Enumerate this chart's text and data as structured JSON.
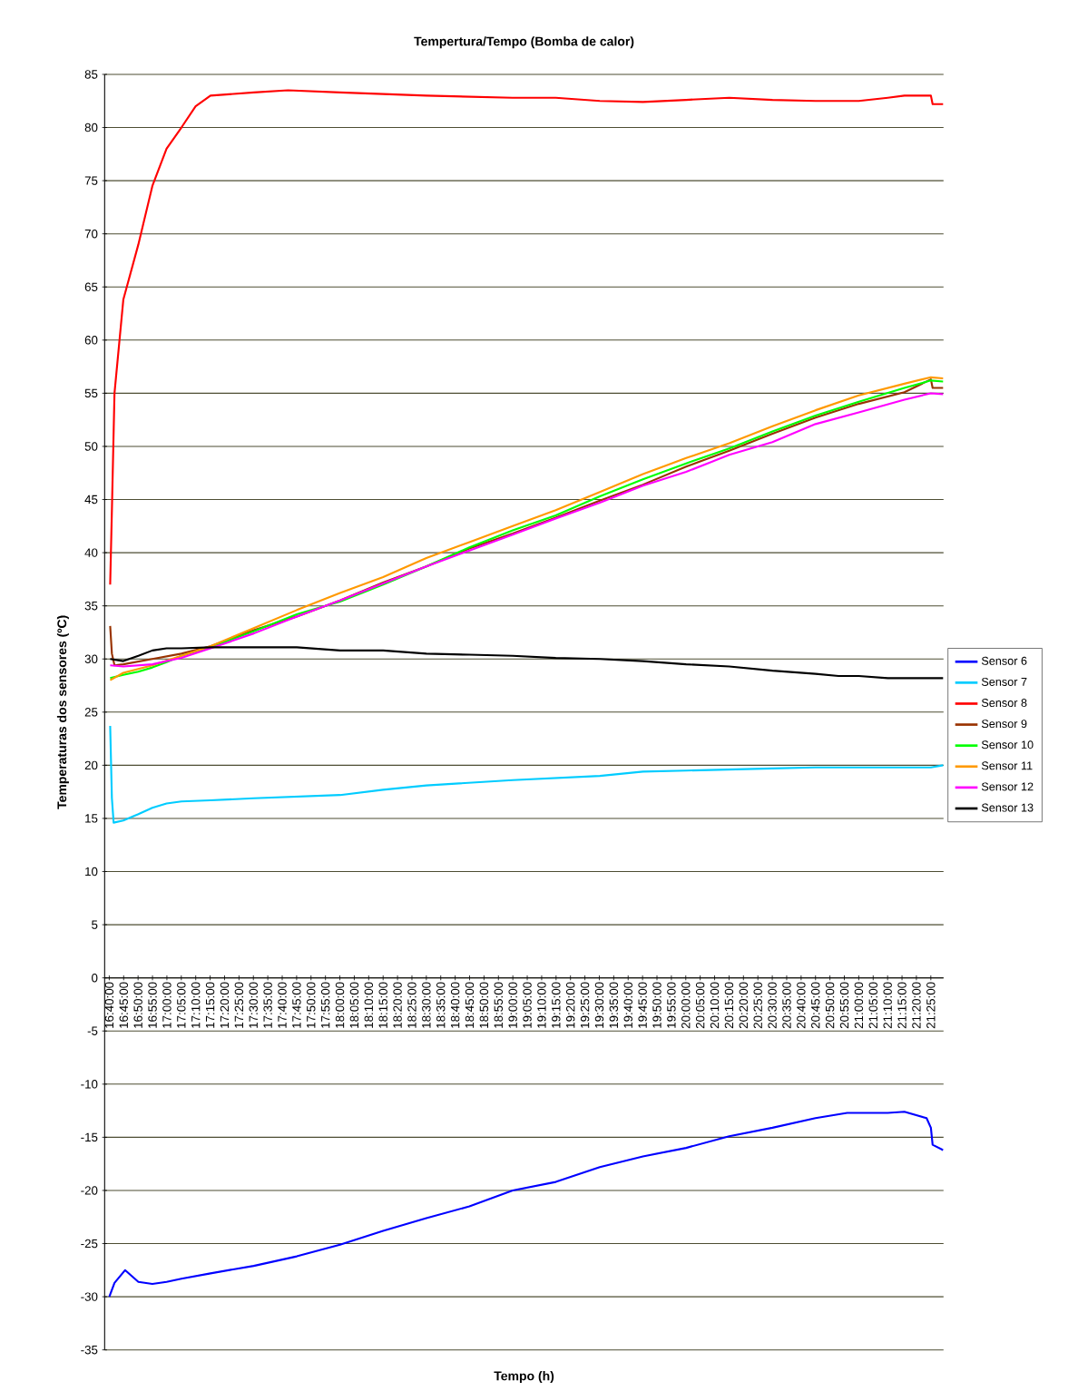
{
  "chart_data": {
    "type": "line",
    "title": "Tempertura/Tempo (Bomba de calor)",
    "xlabel": "Tempo (h)",
    "ylabel": "Temperaturas dos sensores (ºC)",
    "xlim": [
      16.64,
      21.49
    ],
    "ylim": [
      -35,
      85
    ],
    "yticks": [
      -35,
      -30,
      -25,
      -20,
      -15,
      -10,
      -5,
      0,
      5,
      10,
      15,
      20,
      25,
      30,
      35,
      40,
      45,
      50,
      55,
      60,
      65,
      70,
      75,
      80,
      85
    ],
    "xticks": [
      {
        "value": 16.6667,
        "label": "16:40:00"
      },
      {
        "value": 16.75,
        "label": "16:45:00"
      },
      {
        "value": 16.8333,
        "label": "16:50:00"
      },
      {
        "value": 16.9167,
        "label": "16:55:00"
      },
      {
        "value": 17,
        "label": "17:00:00"
      },
      {
        "value": 17.0833,
        "label": "17:05:00"
      },
      {
        "value": 17.1667,
        "label": "17:10:00"
      },
      {
        "value": 17.25,
        "label": "17:15:00"
      },
      {
        "value": 17.3333,
        "label": "17:20:00"
      },
      {
        "value": 17.4167,
        "label": "17:25:00"
      },
      {
        "value": 17.5,
        "label": "17:30:00"
      },
      {
        "value": 17.5833,
        "label": "17:35:00"
      },
      {
        "value": 17.6667,
        "label": "17:40:00"
      },
      {
        "value": 17.75,
        "label": "17:45:00"
      },
      {
        "value": 17.8333,
        "label": "17:50:00"
      },
      {
        "value": 17.9167,
        "label": "17:55:00"
      },
      {
        "value": 18,
        "label": "18:00:00"
      },
      {
        "value": 18.0833,
        "label": "18:05:00"
      },
      {
        "value": 18.1667,
        "label": "18:10:00"
      },
      {
        "value": 18.25,
        "label": "18:15:00"
      },
      {
        "value": 18.3333,
        "label": "18:20:00"
      },
      {
        "value": 18.4167,
        "label": "18:25:00"
      },
      {
        "value": 18.5,
        "label": "18:30:00"
      },
      {
        "value": 18.5833,
        "label": "18:35:00"
      },
      {
        "value": 18.6667,
        "label": "18:40:00"
      },
      {
        "value": 18.75,
        "label": "18:45:00"
      },
      {
        "value": 18.8333,
        "label": "18:50:00"
      },
      {
        "value": 18.9167,
        "label": "18:55:00"
      },
      {
        "value": 19,
        "label": "19:00:00"
      },
      {
        "value": 19.0833,
        "label": "19:05:00"
      },
      {
        "value": 19.1667,
        "label": "19:10:00"
      },
      {
        "value": 19.25,
        "label": "19:15:00"
      },
      {
        "value": 19.3333,
        "label": "19:20:00"
      },
      {
        "value": 19.4167,
        "label": "19:25:00"
      },
      {
        "value": 19.5,
        "label": "19:30:00"
      },
      {
        "value": 19.5833,
        "label": "19:35:00"
      },
      {
        "value": 19.6667,
        "label": "19:40:00"
      },
      {
        "value": 19.75,
        "label": "19:45:00"
      },
      {
        "value": 19.8333,
        "label": "19:50:00"
      },
      {
        "value": 19.9167,
        "label": "19:55:00"
      },
      {
        "value": 20,
        "label": "20:00:00"
      },
      {
        "value": 20.0833,
        "label": "20:05:00"
      },
      {
        "value": 20.1667,
        "label": "20:10:00"
      },
      {
        "value": 20.25,
        "label": "20:15:00"
      },
      {
        "value": 20.3333,
        "label": "20:20:00"
      },
      {
        "value": 20.4167,
        "label": "20:25:00"
      },
      {
        "value": 20.5,
        "label": "20:30:00"
      },
      {
        "value": 20.5833,
        "label": "20:35:00"
      },
      {
        "value": 20.6667,
        "label": "20:40:00"
      },
      {
        "value": 20.75,
        "label": "20:45:00"
      },
      {
        "value": 20.8333,
        "label": "20:50:00"
      },
      {
        "value": 20.9167,
        "label": "20:55:00"
      },
      {
        "value": 21,
        "label": "21:00:00"
      },
      {
        "value": 21.0833,
        "label": "21:05:00"
      },
      {
        "value": 21.1667,
        "label": "21:10:00"
      },
      {
        "value": 21.25,
        "label": "21:15:00"
      },
      {
        "value": 21.3333,
        "label": "21:20:00"
      },
      {
        "value": 21.4167,
        "label": "21:25:00"
      }
    ],
    "grid": "y",
    "legend": "right",
    "marker": "none",
    "line_style": "solid",
    "series": [
      {
        "name": "Sensor 6",
        "color": "#0000ff",
        "x": [
          16.667,
          16.697,
          16.758,
          16.835,
          16.916,
          16.998,
          17.084,
          17.252,
          17.502,
          17.751,
          18.001,
          18.25,
          18.5,
          18.749,
          18.999,
          19.248,
          19.503,
          19.752,
          20.002,
          20.251,
          20.501,
          20.75,
          20.933,
          21.168,
          21.264,
          21.392,
          21.417,
          21.427,
          21.488
        ],
        "values": [
          -30.0,
          -28.7,
          -27.5,
          -28.6,
          -28.8,
          -28.6,
          -28.3,
          -27.8,
          -27.1,
          -26.2,
          -25.1,
          -23.8,
          -22.6,
          -21.5,
          -20.0,
          -19.2,
          -17.8,
          -16.8,
          -16.0,
          -14.9,
          -14.1,
          -13.2,
          -12.7,
          -12.7,
          -12.6,
          -13.2,
          -14.1,
          -15.7,
          -16.2
        ]
      },
      {
        "name": "Sensor 7",
        "color": "#00ccff",
        "x": [
          16.672,
          16.682,
          16.692,
          16.748,
          16.835,
          16.916,
          16.998,
          17.084,
          17.252,
          17.502,
          18.001,
          18.25,
          18.5,
          18.999,
          19.503,
          19.752,
          20.002,
          20.501,
          20.75,
          21.417,
          21.488
        ],
        "values": [
          23.7,
          16.9,
          14.6,
          14.8,
          15.4,
          16.0,
          16.4,
          16.6,
          16.7,
          16.9,
          17.2,
          17.7,
          18.1,
          18.6,
          19.0,
          19.4,
          19.5,
          19.7,
          19.8,
          19.8,
          20.0
        ]
      },
      {
        "name": "Sensor 8",
        "color": "#ff0000",
        "x": [
          16.672,
          16.682,
          16.697,
          16.748,
          16.835,
          16.916,
          16.998,
          17.084,
          17.166,
          17.252,
          17.502,
          17.7,
          18.001,
          18.5,
          18.999,
          19.248,
          19.503,
          19.752,
          20.002,
          20.251,
          20.501,
          20.75,
          21.0,
          21.168,
          21.264,
          21.417,
          21.427,
          21.488
        ],
        "values": [
          37.0,
          44.0,
          55.0,
          63.8,
          69.0,
          74.5,
          78.0,
          80.0,
          82.0,
          83.0,
          83.3,
          83.5,
          83.3,
          83.0,
          82.8,
          82.8,
          82.5,
          82.4,
          82.6,
          82.8,
          82.6,
          82.5,
          82.5,
          82.8,
          83.0,
          83.0,
          82.2,
          82.2
        ]
      },
      {
        "name": "Sensor 9",
        "color": "#993300",
        "x": [
          16.672,
          16.682,
          16.697,
          16.748,
          16.916,
          17.084,
          17.252,
          17.502,
          17.751,
          18.001,
          18.25,
          18.5,
          18.749,
          18.999,
          19.248,
          19.503,
          19.752,
          20.002,
          20.251,
          20.501,
          20.75,
          21.0,
          21.264,
          21.417,
          21.427,
          21.488
        ],
        "values": [
          33.1,
          30.5,
          29.4,
          29.5,
          30.0,
          30.5,
          31.2,
          32.7,
          34.0,
          35.5,
          37.2,
          38.7,
          40.4,
          41.8,
          43.3,
          44.9,
          46.4,
          48.1,
          49.6,
          51.2,
          52.7,
          54.0,
          55.1,
          56.3,
          55.5,
          55.5
        ]
      },
      {
        "name": "Sensor 10",
        "color": "#00ff00",
        "x": [
          16.672,
          16.748,
          16.835,
          16.916,
          16.998,
          17.084,
          17.252,
          17.502,
          17.751,
          18.001,
          18.25,
          18.5,
          18.749,
          18.999,
          19.248,
          19.503,
          19.752,
          20.002,
          20.251,
          20.501,
          20.75,
          21.0,
          21.264,
          21.417,
          21.488
        ],
        "values": [
          28.2,
          28.5,
          28.8,
          29.2,
          29.7,
          30.3,
          31.1,
          32.6,
          34.2,
          35.4,
          37.0,
          38.7,
          40.5,
          42.1,
          43.5,
          45.3,
          46.9,
          48.4,
          49.8,
          51.4,
          52.9,
          54.2,
          55.5,
          56.2,
          56.1
        ]
      },
      {
        "name": "Sensor 11",
        "color": "#ff9900",
        "x": [
          16.672,
          16.748,
          16.916,
          17.084,
          17.252,
          17.502,
          17.751,
          18.001,
          18.25,
          18.5,
          18.749,
          18.999,
          19.248,
          19.503,
          19.752,
          20.002,
          20.251,
          20.501,
          20.75,
          21.0,
          21.264,
          21.417,
          21.488
        ],
        "values": [
          28.0,
          28.7,
          29.4,
          30.3,
          31.2,
          32.9,
          34.6,
          36.2,
          37.7,
          39.5,
          41.0,
          42.5,
          44.0,
          45.7,
          47.4,
          48.9,
          50.3,
          51.9,
          53.4,
          54.8,
          55.9,
          56.5,
          56.4
        ]
      },
      {
        "name": "Sensor 12",
        "color": "#ff00ff",
        "x": [
          16.672,
          16.748,
          16.916,
          17.084,
          17.252,
          17.502,
          17.751,
          18.001,
          18.25,
          18.5,
          18.749,
          18.999,
          19.248,
          19.503,
          19.752,
          20.002,
          20.251,
          20.501,
          20.75,
          21.0,
          21.264,
          21.417,
          21.488
        ],
        "values": [
          29.4,
          29.3,
          29.5,
          30.1,
          31.0,
          32.4,
          34.0,
          35.5,
          37.1,
          38.7,
          40.2,
          41.7,
          43.2,
          44.7,
          46.3,
          47.6,
          49.2,
          50.4,
          52.1,
          53.2,
          54.4,
          55.0,
          54.9
        ]
      },
      {
        "name": "Sensor 13",
        "color": "#000000",
        "x": [
          16.672,
          16.748,
          16.835,
          16.916,
          16.998,
          17.084,
          17.252,
          17.751,
          18.001,
          18.25,
          18.5,
          18.749,
          18.999,
          19.248,
          19.503,
          19.752,
          20.002,
          20.251,
          20.501,
          20.75,
          20.883,
          21.0,
          21.168,
          21.488
        ],
        "values": [
          30.0,
          29.8,
          30.3,
          30.8,
          31.0,
          31.0,
          31.1,
          31.1,
          30.8,
          30.8,
          30.5,
          30.4,
          30.3,
          30.1,
          30.0,
          29.8,
          29.5,
          29.3,
          28.9,
          28.6,
          28.4,
          28.4,
          28.2,
          28.2
        ]
      }
    ]
  }
}
